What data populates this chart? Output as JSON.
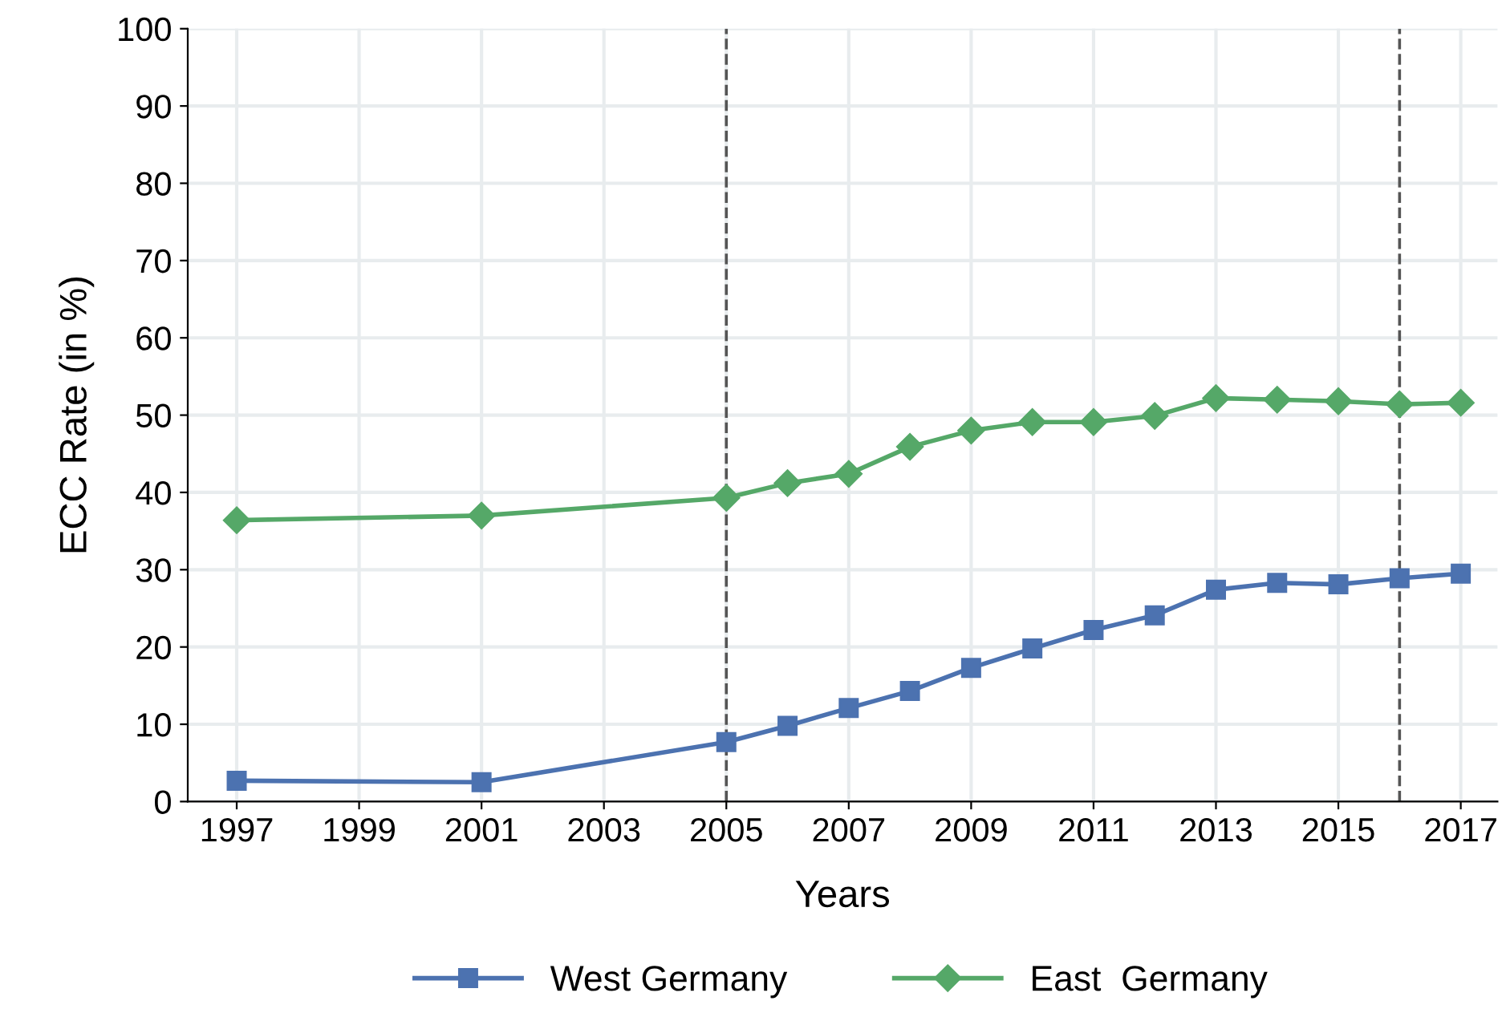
{
  "chart_data": {
    "type": "line",
    "xlabel": "Years",
    "ylabel": "ECC Rate (in %)",
    "x": [
      1997,
      2001,
      2005,
      2006,
      2007,
      2008,
      2009,
      2010,
      2011,
      2012,
      2013,
      2014,
      2015,
      2016,
      2017
    ],
    "series": [
      {
        "name": "West Germany",
        "color": "#4c72b0",
        "marker": "square",
        "values": [
          2.7,
          2.5,
          7.7,
          9.8,
          12.1,
          14.3,
          17.3,
          19.8,
          22.2,
          24.1,
          27.4,
          28.3,
          28.1,
          28.9,
          29.5
        ]
      },
      {
        "name": "East  Germany",
        "color": "#55a868",
        "marker": "diamond",
        "values": [
          36.4,
          37.0,
          39.3,
          41.2,
          42.4,
          45.9,
          48.0,
          49.1,
          49.1,
          49.9,
          52.2,
          52.0,
          51.8,
          51.4,
          51.6
        ]
      }
    ],
    "xlim": [
      1996.2,
      2017.6
    ],
    "xticks": [
      1997,
      1999,
      2001,
      2003,
      2005,
      2007,
      2009,
      2011,
      2013,
      2015,
      2017
    ],
    "ylim": [
      0,
      100
    ],
    "yticks": [
      0,
      10,
      20,
      30,
      40,
      50,
      60,
      70,
      80,
      90,
      100
    ],
    "ref_lines": [
      {
        "axis": "x",
        "value": 2005,
        "color": "#555555",
        "line_style": "dashed"
      },
      {
        "axis": "x",
        "value": 2016,
        "color": "#555555",
        "line_style": "dashed"
      }
    ],
    "grid": true,
    "legend": "bottom",
    "line_style": "solid"
  }
}
